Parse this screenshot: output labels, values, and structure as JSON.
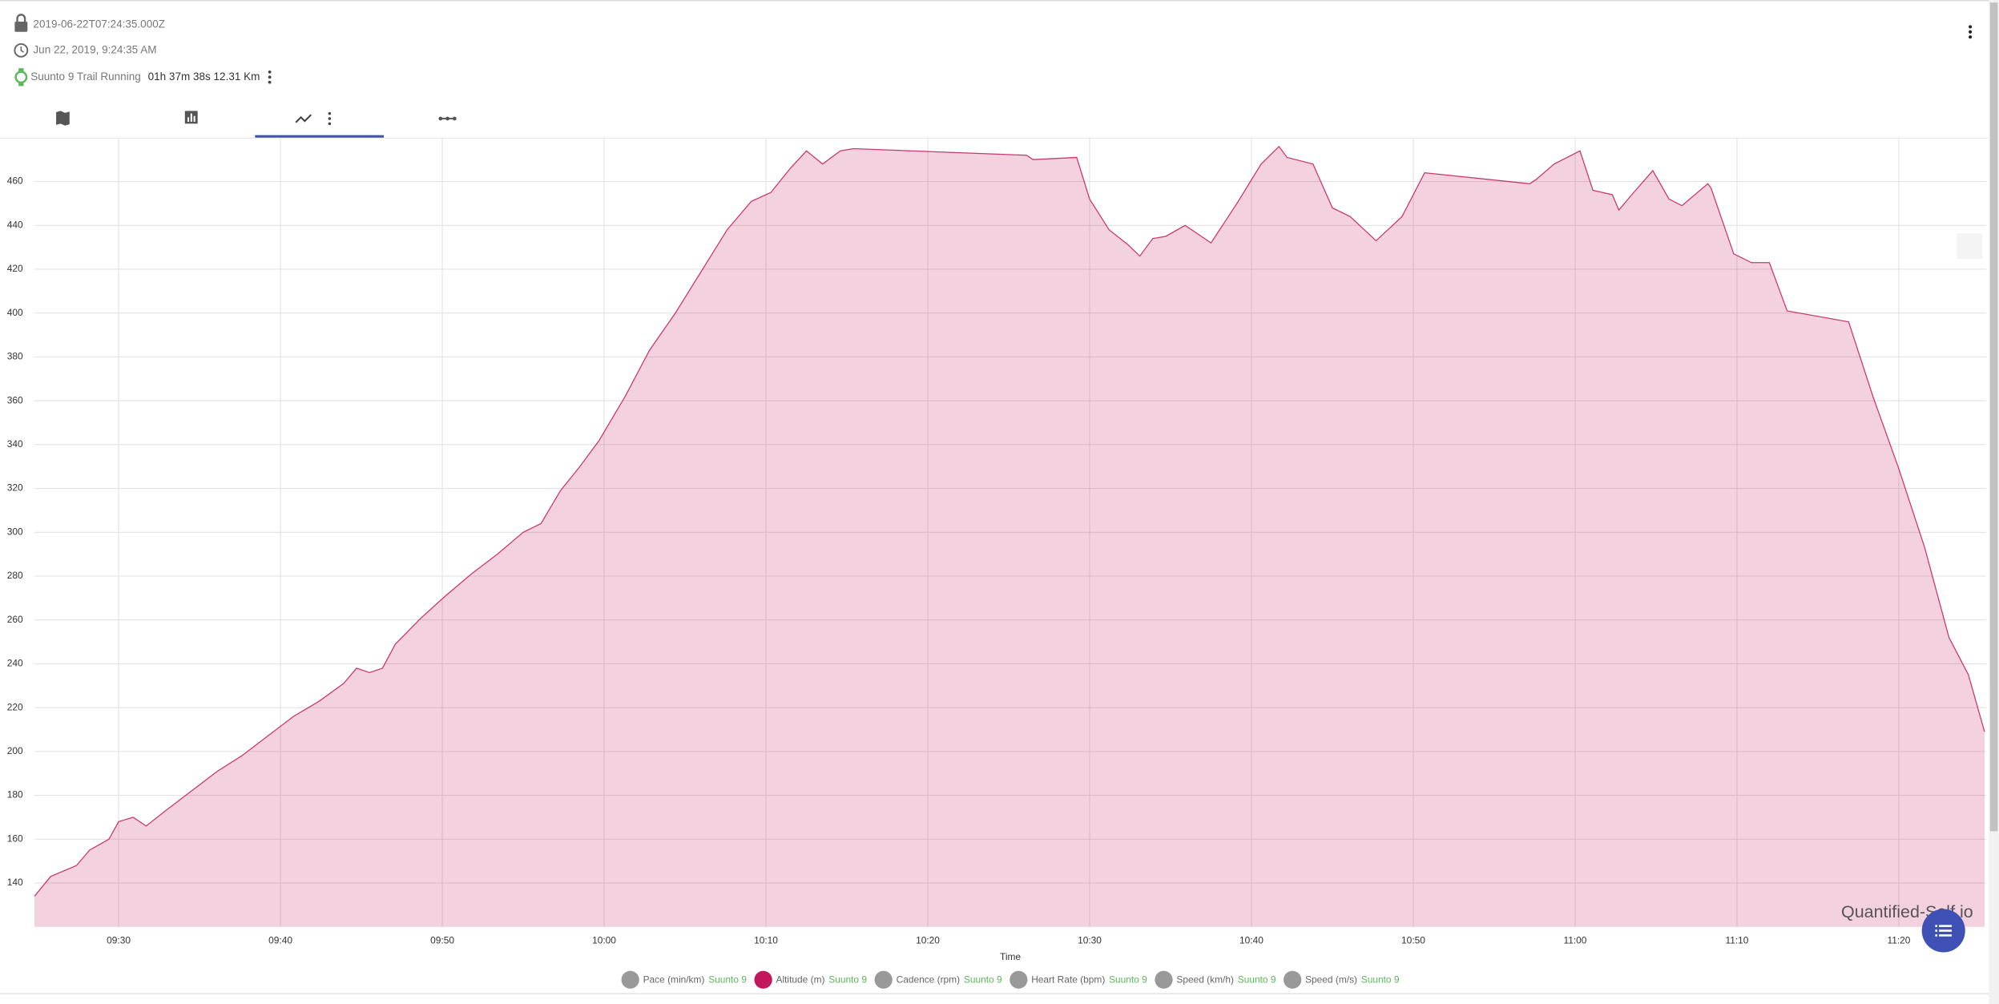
{
  "header": {
    "date_iso": "2019-06-22T07:24:35.000Z",
    "date": "Jun 22, 2019, 9:24:35 AM",
    "activity": "Suunto 9 Trail Running",
    "stats": "01h 37m 38s 12.31 Km"
  },
  "chart_data": {
    "type": "area",
    "x_label": "Time",
    "watermark": "Quantified-Self.io",
    "x": [
      564.8,
      565.8,
      567.4,
      568.2,
      569.4,
      570,
      570.9,
      571.7,
      572.9,
      574.5,
      576.1,
      577.6,
      579.2,
      580.8,
      582.4,
      583.9,
      584.7,
      585.5,
      586.3,
      587.1,
      588.7,
      590.2,
      591.8,
      593.4,
      595,
      596.1,
      597.3,
      598.5,
      599.7,
      601.3,
      602.8,
      604.4,
      606,
      607.6,
      609.1,
      610.3,
      611.5,
      612.5,
      613.5,
      614.6,
      615.4,
      626.1,
      626.5,
      629.2,
      630,
      631.2,
      632.4,
      633.1,
      633.9,
      634.7,
      635.9,
      637.5,
      639.1,
      640.6,
      641.7,
      642.2,
      643.8,
      645,
      646.1,
      647.7,
      649.3,
      650.7,
      657.2,
      657.6,
      658.7,
      660.3,
      661.1,
      662.3,
      662.7,
      663.5,
      664.8,
      665.8,
      666.6,
      668.2,
      668.4,
      669.8,
      670.9,
      672,
      673.1,
      676.9,
      678.4,
      680,
      681.6,
      683.1,
      684.3,
      685.3
    ],
    "series": [
      {
        "color": "#c2185b",
        "values": [
          134,
          143,
          148,
          155,
          160,
          168,
          170,
          166,
          173,
          182,
          191,
          198,
          207,
          216,
          223,
          231,
          238,
          236,
          238,
          249,
          261,
          271,
          281,
          290,
          300,
          304,
          319,
          330,
          342,
          362,
          383,
          400,
          419,
          438,
          451,
          455,
          466,
          474,
          468,
          474,
          475,
          472,
          470,
          471,
          452,
          438,
          431,
          426,
          434,
          435,
          440,
          432,
          450,
          468,
          476,
          471,
          468,
          448,
          444,
          433,
          444,
          464,
          459,
          461,
          468,
          474,
          456,
          454,
          447,
          454,
          465,
          452,
          449,
          459,
          457,
          427,
          423,
          423,
          401,
          396,
          362,
          329,
          293,
          252,
          235,
          209
        ]
      }
    ],
    "legend": [
      {
        "name": "Pace (min/km)",
        "device": "Suunto 9"
      },
      {
        "name": "Altitude (m)",
        "device": "Suunto 9",
        "color": "#c2185b"
      },
      {
        "name": "Cadence (rpm)",
        "device": "Suunto 9"
      },
      {
        "name": "Heart Rate (bpm)",
        "device": "Suunto 9"
      },
      {
        "name": "Speed (km/h)",
        "device": "Suunto 9"
      },
      {
        "name": "Speed (m/s)",
        "device": "Suunto 9"
      }
    ],
    "xlim": [
      564.8,
      685.4
    ],
    "xticks": [
      {
        "value": 570,
        "label": "09:30"
      },
      {
        "value": 580,
        "label": "09:40"
      },
      {
        "value": 590,
        "label": "09:50"
      },
      {
        "value": 600,
        "label": "10:00"
      },
      {
        "value": 610,
        "label": "10:10"
      },
      {
        "value": 620,
        "label": "10:20"
      },
      {
        "value": 630,
        "label": "10:30"
      },
      {
        "value": 640,
        "label": "10:40"
      },
      {
        "value": 650,
        "label": "10:50"
      },
      {
        "value": 660,
        "label": "11:00"
      },
      {
        "value": 670,
        "label": "11:10"
      },
      {
        "value": 680,
        "label": "11:20"
      }
    ],
    "ylim": [
      120,
      480
    ],
    "yticks": [
      140,
      160,
      180,
      200,
      220,
      240,
      260,
      280,
      300,
      320,
      340,
      360,
      380,
      400,
      420,
      440,
      460
    ],
    "grid": true
  }
}
